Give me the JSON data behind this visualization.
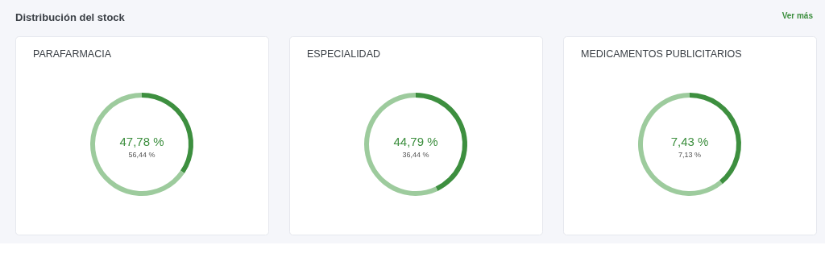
{
  "chart_data": [
    {
      "type": "other",
      "title": "Distribución del stock",
      "annotations": [
        "Ver más"
      ]
    },
    {
      "type": "donut",
      "title": "PARAFARMACIA",
      "categories": [
        null,
        null
      ],
      "values": [
        34.5,
        65.5
      ],
      "colors": [
        "#3d8f3f",
        "#9dcb9d"
      ],
      "annotations": [
        "47,78 %",
        "56,44 %"
      ]
    },
    {
      "type": "donut",
      "title": "ESPECIALIDAD",
      "categories": [
        null,
        null
      ],
      "values": [
        43,
        57
      ],
      "colors": [
        "#3d8f3f",
        "#9dcb9d"
      ],
      "annotations": [
        "44,79 %",
        "36,44 %"
      ]
    },
    {
      "type": "donut",
      "title": "MEDICAMENTOS PUBLICITARIOS",
      "categories": [
        null,
        null
      ],
      "values": [
        39,
        61
      ],
      "colors": [
        "#3d8f3f",
        "#9dcb9d"
      ],
      "annotations": [
        "7,43 %",
        "7,13 %"
      ]
    }
  ]
}
